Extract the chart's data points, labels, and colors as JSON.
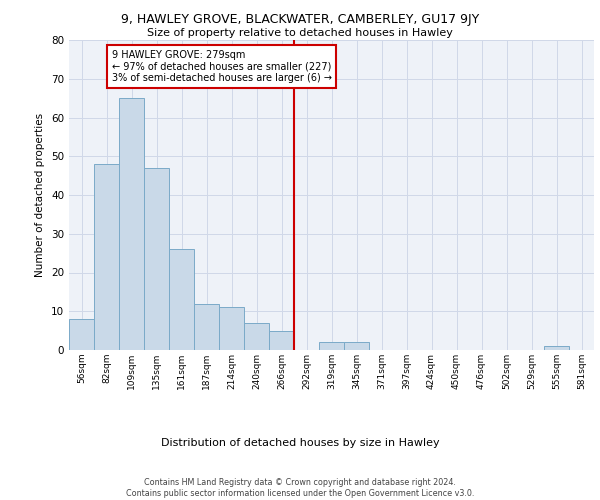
{
  "title1": "9, HAWLEY GROVE, BLACKWATER, CAMBERLEY, GU17 9JY",
  "title2": "Size of property relative to detached houses in Hawley",
  "xlabel": "Distribution of detached houses by size in Hawley",
  "ylabel": "Number of detached properties",
  "bin_labels": [
    "56sqm",
    "82sqm",
    "109sqm",
    "135sqm",
    "161sqm",
    "187sqm",
    "214sqm",
    "240sqm",
    "266sqm",
    "292sqm",
    "319sqm",
    "345sqm",
    "371sqm",
    "397sqm",
    "424sqm",
    "450sqm",
    "476sqm",
    "502sqm",
    "529sqm",
    "555sqm",
    "581sqm"
  ],
  "bar_heights": [
    8,
    48,
    65,
    47,
    26,
    12,
    11,
    7,
    5,
    0,
    2,
    2,
    0,
    0,
    0,
    0,
    0,
    0,
    0,
    1,
    0
  ],
  "bar_color": "#c9d9e8",
  "bar_edge_color": "#7aaac8",
  "vline_color": "#cc0000",
  "annotation_box_edge_color": "#cc0000",
  "subject_line_label": "9 HAWLEY GROVE: 279sqm",
  "annotation_line1": "← 97% of detached houses are smaller (227)",
  "annotation_line2": "3% of semi-detached houses are larger (6) →",
  "ylim": [
    0,
    80
  ],
  "yticks": [
    0,
    10,
    20,
    30,
    40,
    50,
    60,
    70,
    80
  ],
  "grid_color": "#d0d8e8",
  "background_color": "#eef2f8",
  "footer1": "Contains HM Land Registry data © Crown copyright and database right 2024.",
  "footer2": "Contains public sector information licensed under the Open Government Licence v3.0."
}
